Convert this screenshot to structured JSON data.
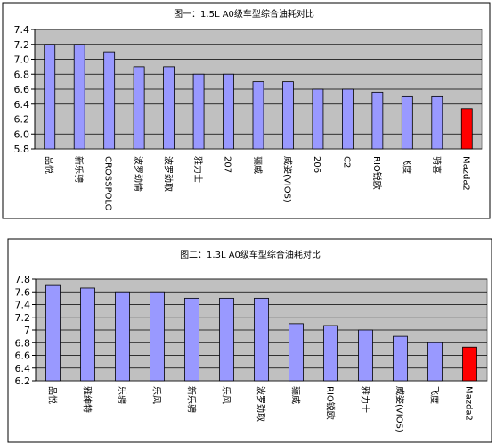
{
  "chart_data": [
    {
      "type": "bar",
      "title": "图一：1.5L A0级车型综合油耗对比",
      "categories": [
        "品悦",
        "新乐骋",
        "CROSSPOLO",
        "波罗劲情",
        "波罗劲取",
        "雅力士",
        "207",
        "骊威",
        "威姿(VIOS)",
        "206",
        "C2",
        "RIO锐欧",
        "飞度",
        "骑喜",
        "Mazda2"
      ],
      "values": [
        7.2,
        7.2,
        7.1,
        6.9,
        6.9,
        6.8,
        6.8,
        6.7,
        6.7,
        6.6,
        6.6,
        6.56,
        6.5,
        6.5,
        6.34
      ],
      "highlight_index": 14,
      "ylim": [
        5.8,
        7.4
      ],
      "yticks": [
        "5.8",
        "6.0",
        "6.2",
        "6.4",
        "6.6",
        "6.8",
        "7.0",
        "7.2",
        "7.4"
      ],
      "bar_color": "#9999ff",
      "highlight_color": "#ff0000",
      "background_color": "#c0c0c0",
      "grid": true
    },
    {
      "type": "bar",
      "title": "图二：1.3L A0级车型综合油耗对比",
      "categories": [
        "品悦",
        "雅绅特",
        "乐骋",
        "乐风",
        "新乐骋",
        "乐风",
        "波罗劲取",
        "骊威",
        "RIO锐欧",
        "雅力士",
        "威姿(VIOS)",
        "飞度",
        "Mazda2"
      ],
      "values": [
        7.7,
        7.66,
        7.6,
        7.6,
        7.5,
        7.5,
        7.5,
        7.1,
        7.07,
        7.0,
        6.9,
        6.8,
        6.73
      ],
      "highlight_index": 12,
      "ylim": [
        6.2,
        7.8
      ],
      "yticks": [
        "6.2",
        "6.4",
        "6.6",
        "6.8",
        "7",
        "7.2",
        "7.4",
        "7.6",
        "7.8"
      ],
      "bar_color": "#9999ff",
      "highlight_color": "#ff0000",
      "background_color": "#c0c0c0",
      "grid": true
    }
  ]
}
